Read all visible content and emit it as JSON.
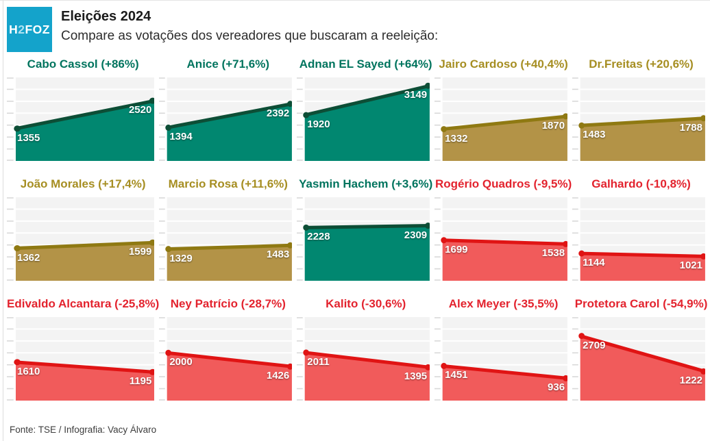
{
  "page": {
    "brand": {
      "logo_parts": [
        "H",
        "2",
        "FOZ"
      ],
      "logo_bg": "#14a3cb",
      "logo_accent": "#aee2f1"
    },
    "title": "Eleições 2024",
    "subtitle": "Compare as votações dos vereadores que buscaram a reeleição:",
    "footer": "Fonte: TSE / Infografia: Vacy Álvaro"
  },
  "palette": {
    "green": {
      "title": "#00745e",
      "line": "#0d4e36",
      "fill": "#018770"
    },
    "gold": {
      "title": "#a68e22",
      "line": "#8f7912",
      "fill": "#b39347"
    },
    "red": {
      "title": "#e3232e",
      "line": "#e01414",
      "fill": "#f15b5b"
    }
  },
  "axis": {
    "plot_bg": "#f3f3f3",
    "grid_color": "#ffffff",
    "tick_color": "#d8d8d8"
  },
  "chart_data": {
    "type": "area",
    "layout": {
      "grid": "5 columns x 3 rows",
      "gridline_bands": 7,
      "legend": "none",
      "x_points": 2
    },
    "ylim": [
      0,
      3500
    ],
    "charts": [
      {
        "label": "Cabo Cassol (+86%)",
        "name": "Cabo Cassol",
        "change": "+86%",
        "start": 1355,
        "end": 2520,
        "trend": "green"
      },
      {
        "label": "Anice (+71,6%)",
        "name": "Anice",
        "change": "+71,6%",
        "start": 1394,
        "end": 2392,
        "trend": "green"
      },
      {
        "label": "Adnan EL Sayed (+64%)",
        "name": "Adnan EL Sayed",
        "change": "+64%",
        "start": 1920,
        "end": 3149,
        "trend": "green"
      },
      {
        "label": "Jairo Cardoso (+40,4%)",
        "name": "Jairo Cardoso",
        "change": "+40,4%",
        "start": 1332,
        "end": 1870,
        "trend": "gold"
      },
      {
        "label": "Dr.Freitas (+20,6%)",
        "name": "Dr.Freitas",
        "change": "+20,6%",
        "start": 1483,
        "end": 1788,
        "trend": "gold"
      },
      {
        "label": "João Morales (+17,4%)",
        "name": "João Morales",
        "change": "+17,4%",
        "start": 1362,
        "end": 1599,
        "trend": "gold"
      },
      {
        "label": "Marcio Rosa (+11,6%)",
        "name": "Marcio Rosa",
        "change": "+11,6%",
        "start": 1329,
        "end": 1483,
        "trend": "gold"
      },
      {
        "label": "Yasmin Hachem (+3,6%)",
        "name": "Yasmin Hachem",
        "change": "+3,6%",
        "start": 2228,
        "end": 2309,
        "trend": "green"
      },
      {
        "label": "Rogério Quadros (-9,5%)",
        "name": "Rogério Quadros",
        "change": "-9,5%",
        "start": 1699,
        "end": 1538,
        "trend": "red"
      },
      {
        "label": "Galhardo (-10,8%)",
        "name": "Galhardo",
        "change": "-10,8%",
        "start": 1144,
        "end": 1021,
        "trend": "red"
      },
      {
        "label": "Edivaldo Alcantara (-25,8%)",
        "name": "Edivaldo Alcantara",
        "change": "-25,8%",
        "start": 1610,
        "end": 1195,
        "trend": "red"
      },
      {
        "label": "Ney Patrício (-28,7%)",
        "name": "Ney Patrício",
        "change": "-28,7%",
        "start": 2000,
        "end": 1426,
        "trend": "red"
      },
      {
        "label": "Kalito (-30,6%)",
        "name": "Kalito",
        "change": "-30,6%",
        "start": 2011,
        "end": 1395,
        "trend": "red"
      },
      {
        "label": "Alex Meyer (-35,5%)",
        "name": "Alex Meyer",
        "change": "-35,5%",
        "start": 1451,
        "end": 936,
        "trend": "red"
      },
      {
        "label": "Protetora Carol (-54,9%)",
        "name": "Protetora Carol",
        "change": "-54,9%",
        "start": 2709,
        "end": 1222,
        "trend": "red"
      }
    ]
  }
}
